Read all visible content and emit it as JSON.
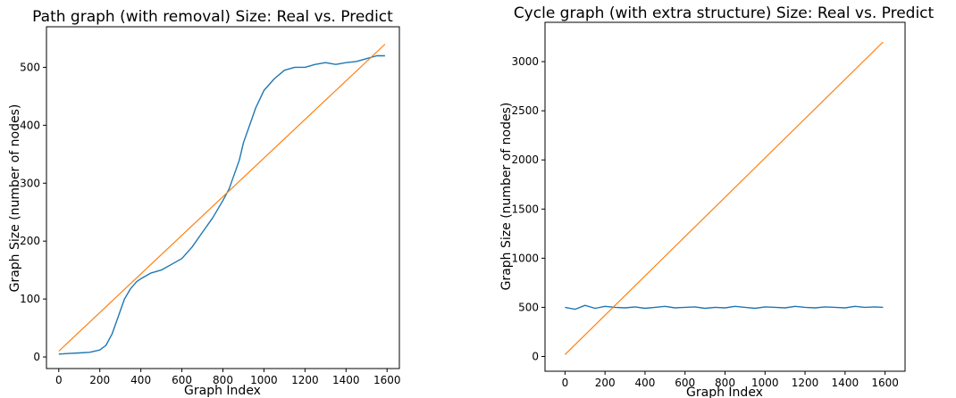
{
  "chart_data": [
    {
      "type": "line",
      "title": "Path graph (with removal) Size: Real vs. Predict",
      "xlabel": "Graph Index",
      "ylabel": "Graph Size (number of nodes)",
      "xlim": [
        -60,
        1660
      ],
      "ylim": [
        -20,
        570
      ],
      "xticks": [
        0,
        200,
        400,
        600,
        800,
        1000,
        1200,
        1400,
        1600
      ],
      "yticks": [
        0,
        100,
        200,
        300,
        400,
        500
      ],
      "grid": false,
      "series": [
        {
          "color": "#1f77b4",
          "x": [
            0,
            50,
            100,
            150,
            200,
            230,
            260,
            290,
            320,
            350,
            380,
            400,
            450,
            500,
            550,
            600,
            650,
            700,
            750,
            800,
            830,
            850,
            880,
            900,
            930,
            960,
            1000,
            1050,
            1100,
            1150,
            1200,
            1250,
            1300,
            1350,
            1400,
            1450,
            1500,
            1550,
            1590
          ],
          "y": [
            5,
            6,
            7,
            8,
            12,
            20,
            40,
            70,
            100,
            118,
            130,
            135,
            145,
            150,
            160,
            170,
            190,
            215,
            240,
            270,
            290,
            310,
            340,
            370,
            400,
            430,
            460,
            480,
            495,
            500,
            500,
            505,
            508,
            505,
            508,
            510,
            515,
            520,
            520
          ]
        },
        {
          "color": "#ff7f0e",
          "x": [
            0,
            1590
          ],
          "y": [
            10,
            540
          ]
        }
      ]
    },
    {
      "type": "line",
      "title": "Cycle graph (with extra structure) Size: Real vs. Predict",
      "xlabel": "Graph Index",
      "ylabel": "Graph Size (number of nodes)",
      "xlim": [
        -100,
        1700
      ],
      "ylim": [
        -150,
        3400
      ],
      "xticks": [
        0,
        200,
        400,
        600,
        800,
        1000,
        1200,
        1400,
        1600
      ],
      "yticks": [
        0,
        500,
        1000,
        1500,
        2000,
        2500,
        3000
      ],
      "grid": false,
      "series": [
        {
          "color": "#1f77b4",
          "x": [
            0,
            50,
            100,
            150,
            200,
            250,
            300,
            350,
            400,
            450,
            500,
            550,
            600,
            650,
            700,
            750,
            800,
            850,
            900,
            950,
            1000,
            1050,
            1100,
            1150,
            1200,
            1250,
            1300,
            1350,
            1400,
            1450,
            1500,
            1550,
            1590
          ],
          "y": [
            500,
            480,
            520,
            490,
            510,
            500,
            495,
            505,
            490,
            500,
            510,
            495,
            500,
            505,
            490,
            500,
            495,
            510,
            500,
            490,
            505,
            500,
            495,
            510,
            500,
            495,
            505,
            500,
            495,
            510,
            500,
            505,
            500
          ]
        },
        {
          "color": "#ff7f0e",
          "x": [
            0,
            1590
          ],
          "y": [
            20,
            3200
          ]
        }
      ]
    }
  ]
}
